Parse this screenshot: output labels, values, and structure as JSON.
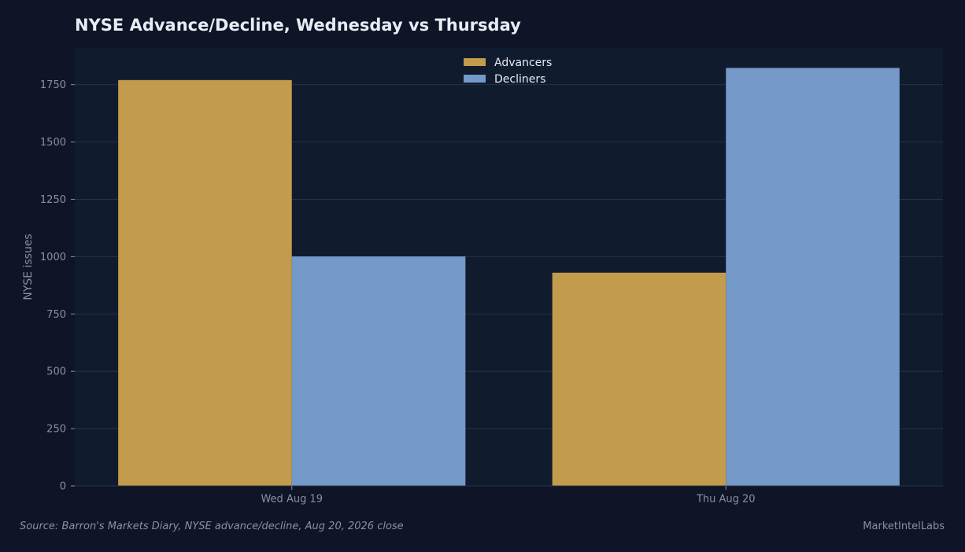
{
  "colors": {
    "background": "#0f1526",
    "plot_background": "#111b2e",
    "grid": "#263247",
    "advancers": "#c29b4c",
    "decliners": "#7599c8",
    "text_primary": "#e8ecf5",
    "text_muted": "#8791a6"
  },
  "footer": {
    "source": "Source: Barron's Markets Diary, NYSE advance/decline, Aug 20, 2026 close",
    "brand": "MarketIntelLabs"
  },
  "chart_data": {
    "type": "bar",
    "title": "NYSE Advance/Decline, Wednesday vs Thursday",
    "xlabel": "",
    "ylabel": "NYSE issues",
    "categories": [
      "Wed Aug 19",
      "Thu Aug 20"
    ],
    "series": [
      {
        "name": "Advancers",
        "values": [
          1770,
          930
        ]
      },
      {
        "name": "Decliners",
        "values": [
          1001,
          1823
        ]
      }
    ],
    "ylim": [
      0,
      1910
    ],
    "yticks": [
      0,
      250,
      500,
      750,
      1000,
      1250,
      1500,
      1750
    ],
    "grid": true,
    "legend_position": "top-center"
  }
}
